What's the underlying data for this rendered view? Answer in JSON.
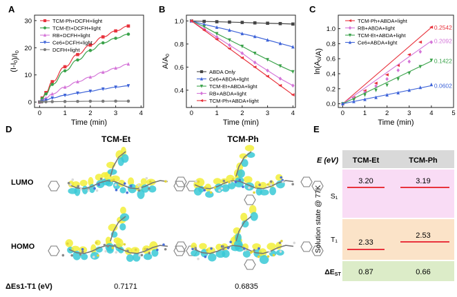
{
  "panel_letters": [
    "A",
    "B",
    "C",
    "D",
    "E"
  ],
  "colors": {
    "TCM-Ph": "#e8323c",
    "TCM-Et": "#3aa24a",
    "RB": "#d475d8",
    "Ce6": "#3d63d8",
    "Control": "#7a7a7a",
    "ABDA": "#444444"
  },
  "chart_data": [
    {
      "panel": "A",
      "type": "line",
      "xlabel": "Time (min)",
      "ylabel": "(I-I0)/I0",
      "xlim": [
        -0.2,
        4.1
      ],
      "ylim": [
        -2,
        32
      ],
      "xticks": [
        0,
        1,
        2,
        3,
        4
      ],
      "yticks": [
        0,
        10,
        20,
        30
      ],
      "legend_position": "top-left",
      "x": [
        0,
        0.1,
        0.25,
        0.5,
        1.0,
        1.5,
        2.0,
        2.5,
        3.0,
        3.5
      ],
      "series": [
        {
          "name": "TCM-Ph+DCFH+light",
          "color": "#e8323c",
          "marker": "square",
          "values": [
            0,
            1.5,
            3.5,
            7.5,
            13.0,
            17.5,
            21.0,
            24.0,
            26.2,
            28.0
          ]
        },
        {
          "name": "TCM-Et+DCFH+light",
          "color": "#3aa24a",
          "marker": "circle",
          "values": [
            0,
            1.3,
            3.0,
            6.5,
            11.5,
            15.5,
            19.0,
            21.8,
            23.5,
            25.0
          ]
        },
        {
          "name": "RB+DCFH+light",
          "color": "#d475d8",
          "marker": "triangle",
          "values": [
            0,
            0.6,
            1.5,
            3.0,
            5.5,
            7.5,
            9.2,
            11.0,
            12.5,
            14.0
          ]
        },
        {
          "name": "Ce6+DCFH+light",
          "color": "#3d63d8",
          "marker": "triangle-down",
          "values": [
            0,
            0.3,
            0.7,
            1.5,
            2.5,
            3.3,
            4.0,
            4.8,
            5.5,
            6.0
          ]
        },
        {
          "name": "DCFH+light",
          "color": "#7a7a7a",
          "marker": "circle",
          "values": [
            0,
            0.05,
            0.1,
            0.15,
            0.2,
            0.25,
            0.3,
            0.3,
            0.35,
            0.35
          ]
        }
      ]
    },
    {
      "panel": "B",
      "type": "line",
      "xlabel": "Time (min)",
      "ylabel": "A/A0",
      "xlim": [
        -0.2,
        4.1
      ],
      "ylim": [
        0.25,
        1.05
      ],
      "xticks": [
        0,
        1,
        2,
        3,
        4
      ],
      "yticks": [
        0.4,
        0.6,
        0.8,
        1.0
      ],
      "legend_position": "bottom-left",
      "x": [
        0,
        0.5,
        1,
        1.5,
        2,
        2.5,
        3,
        3.5,
        4
      ],
      "series": [
        {
          "name": "ABDA Only",
          "color": "#444444",
          "marker": "square",
          "values": [
            1.0,
            0.996,
            0.993,
            0.99,
            0.987,
            0.983,
            0.98,
            0.977,
            0.973
          ]
        },
        {
          "name": "Ce6+ABDA+light",
          "color": "#3d63d8",
          "marker": "triangle",
          "values": [
            1.0,
            0.97,
            0.945,
            0.92,
            0.89,
            0.865,
            0.835,
            0.805,
            0.775
          ]
        },
        {
          "name": "TCM-Et+ABDA+light",
          "color": "#3aa24a",
          "marker": "triangle-down",
          "values": [
            1.0,
            0.95,
            0.89,
            0.835,
            0.78,
            0.72,
            0.665,
            0.61,
            0.56
          ]
        },
        {
          "name": "RB+ABDA+light",
          "color": "#d475d8",
          "marker": "diamond",
          "values": [
            1.0,
            0.93,
            0.86,
            0.79,
            0.72,
            0.64,
            0.57,
            0.5,
            0.44
          ]
        },
        {
          "name": "TCM-Ph+ABDA+light",
          "color": "#e8323c",
          "marker": "triangle-left",
          "values": [
            1.0,
            0.92,
            0.84,
            0.76,
            0.68,
            0.6,
            0.52,
            0.44,
            0.36
          ]
        }
      ]
    },
    {
      "panel": "C",
      "type": "scatter",
      "xlabel": "Time (min)",
      "ylabel": "ln(A0/A)",
      "xlim": [
        -0.2,
        5.0
      ],
      "ylim": [
        -0.05,
        1.18
      ],
      "xticks": [
        0,
        1,
        2,
        3,
        4,
        5
      ],
      "yticks": [
        0.0,
        0.2,
        0.4,
        0.6,
        0.8,
        1.0
      ],
      "legend_position": "top-left",
      "x": [
        0,
        0.5,
        1,
        1.5,
        2,
        2.5,
        3,
        3.5,
        4
      ],
      "series": [
        {
          "name": "TCM-Ph+ABDA+light",
          "color": "#e8323c",
          "marker": "triangle-left",
          "slope": 0.2542,
          "slope_label": "0.2542",
          "values": [
            0,
            0.083,
            0.174,
            0.274,
            0.386,
            0.511,
            0.654,
            0.821,
            1.02
          ]
        },
        {
          "name": "RB+ABDA+light",
          "color": "#d475d8",
          "marker": "diamond",
          "slope": 0.2092,
          "slope_label": "0.2092",
          "values": [
            0,
            0.073,
            0.151,
            0.236,
            0.329,
            0.446,
            0.562,
            0.693,
            0.82
          ]
        },
        {
          "name": "TCM-Et+ABDA+light",
          "color": "#3aa24a",
          "marker": "triangle-down",
          "slope": 0.1422,
          "slope_label": "0.1422",
          "values": [
            0,
            0.051,
            0.117,
            0.18,
            0.248,
            0.329,
            0.408,
            0.494,
            0.58
          ]
        },
        {
          "name": "Ce6+ABDA+light",
          "color": "#3d63d8",
          "marker": "triangle",
          "slope": 0.0602,
          "slope_label": "0.0602",
          "values": [
            0,
            0.03,
            0.057,
            0.083,
            0.117,
            0.145,
            0.18,
            0.217,
            0.255
          ]
        }
      ]
    },
    {
      "panel": "E",
      "type": "table",
      "header": {
        "corner": "E (eV)",
        "columns": [
          "TCM-Et",
          "TCM-Ph"
        ]
      },
      "side_label": "Solution state @ 77K",
      "rows": [
        {
          "state": "S₁",
          "values": [
            "3.20",
            "3.19"
          ]
        },
        {
          "state": "T₁",
          "values": [
            "2.33",
            "2.53"
          ]
        },
        {
          "state": "ΔEST",
          "values": [
            "0.87",
            "0.66"
          ]
        }
      ]
    }
  ],
  "panel_d": {
    "columns": [
      "TCM-Et",
      "TCM-Ph"
    ],
    "rows": [
      "LUMO",
      "HOMO"
    ],
    "gap_label": "ΔEs1-T1 (eV)",
    "gap_values": [
      "0.7171",
      "0.6835"
    ]
  }
}
